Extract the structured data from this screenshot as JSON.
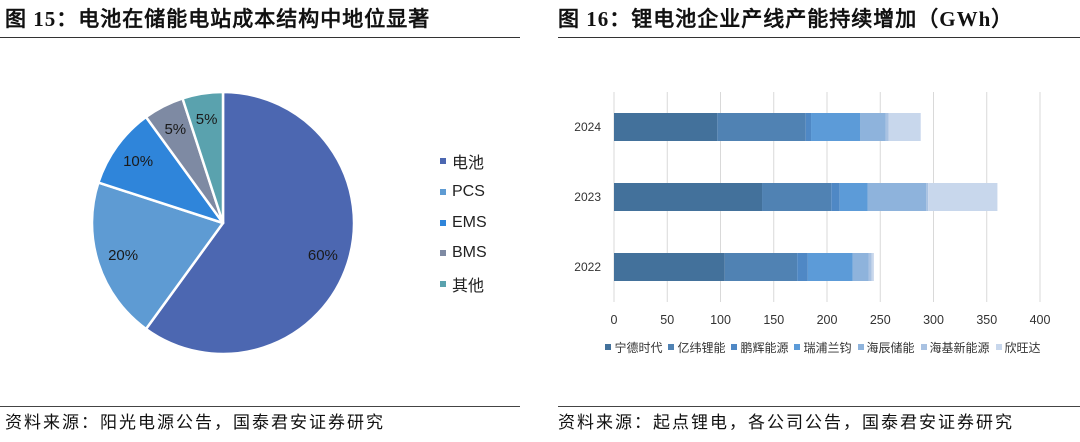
{
  "chart_data": [
    {
      "type": "pie",
      "title": "图 15：电池在储能电站成本结构中地位显著",
      "source": "资料来源：阳光电源公告，国泰君安证券研究",
      "labels": [
        "电池",
        "PCS",
        "EMS",
        "BMS",
        "其他"
      ],
      "values": [
        60,
        20,
        10,
        5,
        5
      ],
      "unit": "%",
      "colors": [
        "#4c67b1",
        "#5e9bd3",
        "#2f85da",
        "#7e8aa3",
        "#5aa2ae"
      ],
      "legend": "right"
    },
    {
      "type": "bar",
      "orientation": "horizontal",
      "stacked": true,
      "title": "图 16：锂电池企业产线产能持续增加（GWh）",
      "source": "资料来源：起点锂电，各公司公告，国泰君安证券研究",
      "categories": [
        "2024",
        "2023",
        "2022"
      ],
      "series": [
        {
          "name": "宁德时代",
          "values": [
            97,
            139,
            104
          ],
          "color": "#43719b"
        },
        {
          "name": "亿纬锂能",
          "values": [
            83,
            65,
            68
          ],
          "color": "#5082b3"
        },
        {
          "name": "鹏辉能源",
          "values": [
            5,
            8,
            10
          ],
          "color": "#4f88c5"
        },
        {
          "name": "瑞浦兰钧",
          "values": [
            46,
            26,
            42
          ],
          "color": "#5c9bd8"
        },
        {
          "name": "海辰储能",
          "values": [
            24,
            55,
            15
          ],
          "color": "#8eb3dc"
        },
        {
          "name": "海基新能源",
          "values": [
            3,
            2,
            3
          ],
          "color": "#a9c2e2"
        },
        {
          "name": "欣旺达",
          "values": [
            30,
            65,
            2
          ],
          "color": "#c8d7ec"
        }
      ],
      "xlim": [
        0,
        400
      ],
      "xticks": [
        0,
        50,
        100,
        150,
        200,
        250,
        300,
        350,
        400
      ],
      "grid": "vertical",
      "legend": "bottom"
    }
  ]
}
